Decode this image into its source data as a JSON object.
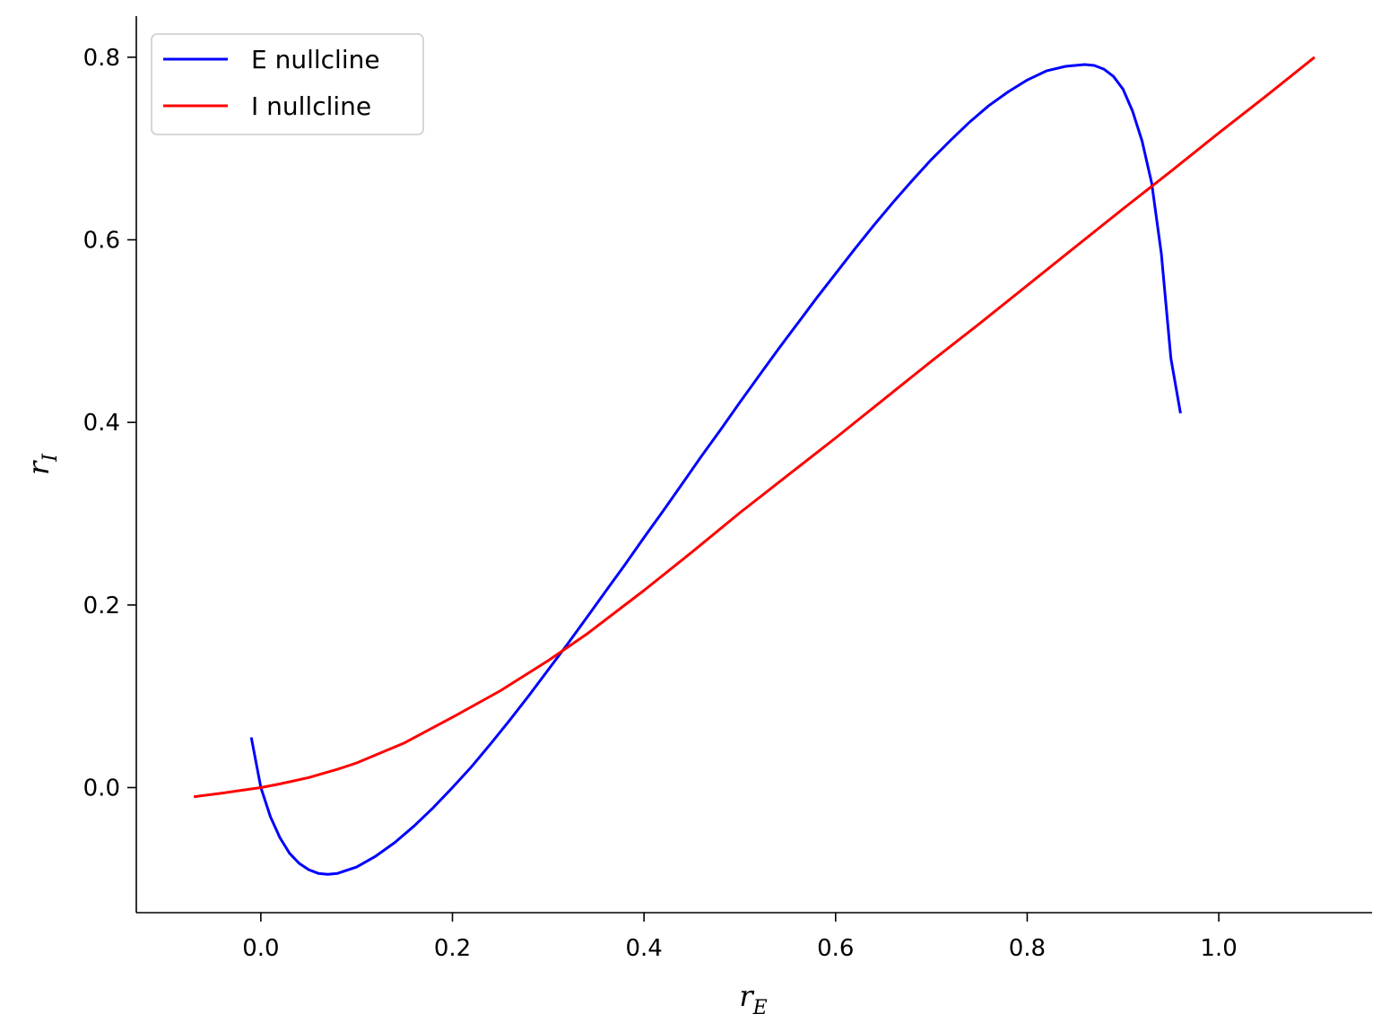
{
  "chart_data": {
    "type": "line",
    "title": "",
    "xlabel": {
      "base": "r",
      "sub": "E"
    },
    "ylabel": {
      "base": "r",
      "sub": "I"
    },
    "xlim": [
      -0.13,
      1.16
    ],
    "ylim": [
      -0.137,
      0.845
    ],
    "xticks": [
      0.0,
      0.2,
      0.4,
      0.6,
      0.8,
      1.0
    ],
    "xtick_labels": [
      "0.0",
      "0.2",
      "0.4",
      "0.6",
      "0.8",
      "1.0"
    ],
    "yticks": [
      0.0,
      0.2,
      0.4,
      0.6,
      0.8
    ],
    "ytick_labels": [
      "0.0",
      "0.2",
      "0.4",
      "0.6",
      "0.8"
    ],
    "grid": false,
    "legend_position": "top-left",
    "series": [
      {
        "name": "E nullcline",
        "color": "#0000ff",
        "points": [
          [
            -0.01,
            0.055
          ],
          [
            0.0,
            0.0
          ],
          [
            0.01,
            -0.032
          ],
          [
            0.02,
            -0.055
          ],
          [
            0.03,
            -0.072
          ],
          [
            0.04,
            -0.083
          ],
          [
            0.05,
            -0.09
          ],
          [
            0.06,
            -0.094
          ],
          [
            0.07,
            -0.095
          ],
          [
            0.08,
            -0.094
          ],
          [
            0.1,
            -0.087
          ],
          [
            0.12,
            -0.075
          ],
          [
            0.14,
            -0.06
          ],
          [
            0.16,
            -0.042
          ],
          [
            0.18,
            -0.022
          ],
          [
            0.2,
            0.0
          ],
          [
            0.22,
            0.023
          ],
          [
            0.24,
            0.048
          ],
          [
            0.26,
            0.074
          ],
          [
            0.28,
            0.101
          ],
          [
            0.3,
            0.129
          ],
          [
            0.32,
            0.157
          ],
          [
            0.34,
            0.186
          ],
          [
            0.36,
            0.215
          ],
          [
            0.38,
            0.244
          ],
          [
            0.4,
            0.274
          ],
          [
            0.42,
            0.303
          ],
          [
            0.44,
            0.333
          ],
          [
            0.46,
            0.363
          ],
          [
            0.48,
            0.392
          ],
          [
            0.5,
            0.422
          ],
          [
            0.52,
            0.451
          ],
          [
            0.54,
            0.48
          ],
          [
            0.56,
            0.508
          ],
          [
            0.58,
            0.536
          ],
          [
            0.6,
            0.563
          ],
          [
            0.62,
            0.59
          ],
          [
            0.64,
            0.616
          ],
          [
            0.66,
            0.641
          ],
          [
            0.68,
            0.665
          ],
          [
            0.7,
            0.688
          ],
          [
            0.72,
            0.709
          ],
          [
            0.74,
            0.729
          ],
          [
            0.76,
            0.747
          ],
          [
            0.78,
            0.762
          ],
          [
            0.8,
            0.775
          ],
          [
            0.82,
            0.785
          ],
          [
            0.84,
            0.79
          ],
          [
            0.86,
            0.792
          ],
          [
            0.87,
            0.791
          ],
          [
            0.88,
            0.787
          ],
          [
            0.89,
            0.779
          ],
          [
            0.9,
            0.765
          ],
          [
            0.91,
            0.741
          ],
          [
            0.92,
            0.708
          ],
          [
            0.93,
            0.662
          ],
          [
            0.94,
            0.585
          ],
          [
            0.95,
            0.47
          ],
          [
            0.96,
            0.41
          ]
        ]
      },
      {
        "name": "I nullcline",
        "color": "#ff0000",
        "points": [
          [
            -0.07,
            -0.01
          ],
          [
            -0.04,
            -0.006
          ],
          [
            -0.02,
            -0.003
          ],
          [
            0.0,
            0.0
          ],
          [
            0.02,
            0.004
          ],
          [
            0.05,
            0.011
          ],
          [
            0.08,
            0.02
          ],
          [
            0.1,
            0.027
          ],
          [
            0.15,
            0.049
          ],
          [
            0.2,
            0.077
          ],
          [
            0.25,
            0.106
          ],
          [
            0.3,
            0.139
          ],
          [
            0.34,
            0.168
          ],
          [
            0.4,
            0.216
          ],
          [
            0.45,
            0.258
          ],
          [
            0.5,
            0.301
          ],
          [
            0.55,
            0.342
          ],
          [
            0.6,
            0.383
          ],
          [
            0.65,
            0.425
          ],
          [
            0.7,
            0.467
          ],
          [
            0.75,
            0.508
          ],
          [
            0.8,
            0.55
          ],
          [
            0.85,
            0.592
          ],
          [
            0.9,
            0.634
          ],
          [
            0.95,
            0.675
          ],
          [
            1.0,
            0.717
          ],
          [
            1.05,
            0.758
          ],
          [
            1.1,
            0.8
          ]
        ]
      }
    ]
  }
}
